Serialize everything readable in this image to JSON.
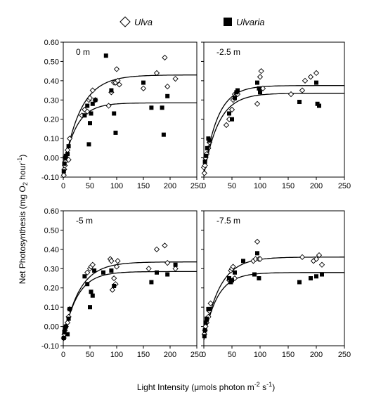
{
  "legend": {
    "series_a": "Ulva",
    "series_b": "Ulvaria"
  },
  "ylabel": {
    "main": "Net Photosynthesis (mg O",
    "sub": "2",
    "mid": " hour",
    "sup": "-1",
    "end": ")"
  },
  "xlabel": {
    "main": "Light Intensity (μmols photon m",
    "sup1": "-2",
    "mid": " s",
    "sup2": "-1",
    "end": ")"
  },
  "chart_data": [
    {
      "type": "scatter",
      "title": "0 m",
      "xlim": [
        0,
        250
      ],
      "ylim": [
        -0.1,
        0.6
      ],
      "xticks": [
        "0",
        "50",
        "100",
        "150",
        "200",
        "250"
      ],
      "yticks": [
        "-0.10",
        "0.00",
        "0.10",
        "0.20",
        "0.30",
        "0.40",
        "0.50",
        "0.60"
      ],
      "series": [
        {
          "name": "Ulva",
          "marker": "diamond-open",
          "x": [
            1,
            2,
            3,
            4,
            5,
            8,
            10,
            12,
            35,
            40,
            45,
            48,
            50,
            55,
            60,
            85,
            90,
            95,
            98,
            100,
            102,
            105,
            150,
            175,
            190,
            195,
            210
          ],
          "y": [
            -0.09,
            -0.06,
            -0.04,
            -0.02,
            0.0,
            0.04,
            -0.01,
            0.1,
            0.22,
            0.25,
            0.24,
            0.3,
            0.31,
            0.35,
            0.3,
            0.27,
            0.34,
            0.39,
            0.39,
            0.46,
            0.4,
            0.38,
            0.36,
            0.44,
            0.52,
            0.37,
            0.41
          ]
        },
        {
          "name": "Ulvaria",
          "marker": "square-filled",
          "x": [
            1,
            2,
            3,
            5,
            8,
            10,
            40,
            45,
            48,
            50,
            52,
            55,
            60,
            80,
            90,
            95,
            98,
            150,
            165,
            185,
            188,
            195
          ],
          "y": [
            -0.07,
            -0.03,
            0.0,
            0.01,
            0.02,
            0.06,
            0.22,
            0.27,
            0.07,
            0.18,
            0.23,
            0.28,
            0.3,
            0.53,
            0.35,
            0.23,
            0.13,
            0.39,
            0.26,
            0.26,
            0.12,
            0.32
          ]
        }
      ],
      "curves": [
        {
          "series": "Ulva",
          "pmax": 0.43,
          "r": 0.07,
          "k": 32
        },
        {
          "series": "Ulvaria",
          "pmax": 0.285,
          "r": 0.06,
          "k": 24
        }
      ]
    },
    {
      "type": "scatter",
      "title": "-2.5 m",
      "xlim": [
        0,
        250
      ],
      "ylim": [
        -0.1,
        0.6
      ],
      "xticks": [
        "0",
        "50",
        "100",
        "150",
        "200",
        "250"
      ],
      "yticks": [],
      "series": [
        {
          "name": "Ulva",
          "marker": "diamond-open",
          "x": [
            0,
            1,
            2,
            3,
            5,
            8,
            10,
            40,
            45,
            50,
            52,
            55,
            58,
            60,
            95,
            100,
            102,
            105,
            155,
            175,
            180,
            190,
            200
          ],
          "y": [
            -0.05,
            -0.08,
            -0.04,
            0.0,
            0.02,
            0.05,
            0.08,
            0.17,
            0.2,
            0.25,
            0.3,
            0.33,
            0.33,
            0.33,
            0.28,
            0.42,
            0.45,
            0.36,
            0.33,
            0.35,
            0.4,
            0.42,
            0.44
          ]
        },
        {
          "name": "Ulvaria",
          "marker": "square-filled",
          "x": [
            2,
            4,
            6,
            8,
            10,
            45,
            50,
            55,
            58,
            60,
            95,
            98,
            100,
            170,
            200,
            202,
            205
          ],
          "y": [
            -0.02,
            0.01,
            0.05,
            0.1,
            0.09,
            0.23,
            0.2,
            0.31,
            0.34,
            0.35,
            0.39,
            0.36,
            0.34,
            0.29,
            0.39,
            0.28,
            0.27
          ]
        }
      ],
      "curves": [
        {
          "series": "Ulva",
          "pmax": 0.335,
          "r": 0.09,
          "k": 26
        },
        {
          "series": "Ulvaria",
          "pmax": 0.375,
          "r": 0.09,
          "k": 24
        }
      ]
    },
    {
      "type": "scatter",
      "title": "-5 m",
      "xlim": [
        0,
        250
      ],
      "ylim": [
        -0.1,
        0.6
      ],
      "xticks": [
        "0",
        "50",
        "100",
        "150",
        "200",
        "250"
      ],
      "yticks": [
        "-0.10",
        "0.00",
        "0.10",
        "0.20",
        "0.30",
        "0.40",
        "0.50",
        "0.60"
      ],
      "series": [
        {
          "name": "Ulva",
          "marker": "diamond-open",
          "x": [
            1,
            2,
            3,
            5,
            8,
            10,
            12,
            45,
            50,
            52,
            55,
            88,
            90,
            92,
            95,
            98,
            100,
            102,
            160,
            175,
            190,
            195,
            210
          ],
          "y": [
            -0.06,
            -0.04,
            -0.02,
            0.0,
            0.02,
            0.05,
            0.09,
            0.28,
            0.3,
            0.31,
            0.32,
            0.35,
            0.34,
            0.19,
            0.25,
            0.22,
            0.31,
            0.34,
            0.3,
            0.4,
            0.42,
            0.33,
            0.3
          ]
        },
        {
          "name": "Ulvaria",
          "marker": "square-filled",
          "x": [
            1,
            2,
            3,
            5,
            8,
            10,
            12,
            40,
            45,
            50,
            52,
            55,
            58,
            75,
            90,
            95,
            165,
            175,
            195,
            210
          ],
          "y": [
            -0.06,
            -0.03,
            -0.01,
            0.0,
            -0.04,
            0.04,
            0.09,
            0.26,
            0.22,
            0.1,
            0.18,
            0.16,
            0.29,
            0.28,
            0.29,
            0.21,
            0.23,
            0.28,
            0.27,
            0.32
          ]
        }
      ],
      "curves": [
        {
          "series": "Ulva",
          "pmax": 0.335,
          "r": 0.07,
          "k": 30
        },
        {
          "series": "Ulvaria",
          "pmax": 0.285,
          "r": 0.07,
          "k": 26
        }
      ]
    },
    {
      "type": "scatter",
      "title": "-7.5 m",
      "xlim": [
        0,
        250
      ],
      "ylim": [
        -0.1,
        0.6
      ],
      "xticks": [
        "0",
        "50",
        "100",
        "150",
        "200",
        "250"
      ],
      "yticks": [],
      "series": [
        {
          "name": "Ulva",
          "marker": "diamond-open",
          "x": [
            1,
            2,
            3,
            5,
            8,
            10,
            12,
            45,
            48,
            50,
            52,
            55,
            88,
            92,
            95,
            98,
            100,
            175,
            195,
            200,
            205,
            210
          ],
          "y": [
            -0.04,
            -0.02,
            0.0,
            0.02,
            0.05,
            0.08,
            0.12,
            0.24,
            0.29,
            0.3,
            0.31,
            0.25,
            0.34,
            0.35,
            0.44,
            0.35,
            0.35,
            0.36,
            0.34,
            0.35,
            0.37,
            0.32
          ]
        },
        {
          "name": "Ulvaria",
          "marker": "square-filled",
          "x": [
            1,
            2,
            3,
            5,
            8,
            10,
            45,
            48,
            50,
            55,
            70,
            90,
            95,
            98,
            170,
            190,
            200,
            210
          ],
          "y": [
            -0.05,
            -0.02,
            0.02,
            0.04,
            0.09,
            0.09,
            0.25,
            0.23,
            0.24,
            0.28,
            0.34,
            0.27,
            0.38,
            0.25,
            0.23,
            0.25,
            0.26,
            0.27
          ]
        }
      ],
      "curves": [
        {
          "series": "Ulva",
          "pmax": 0.36,
          "r": 0.07,
          "k": 28
        },
        {
          "series": "Ulvaria",
          "pmax": 0.28,
          "r": 0.07,
          "k": 24
        }
      ]
    }
  ]
}
